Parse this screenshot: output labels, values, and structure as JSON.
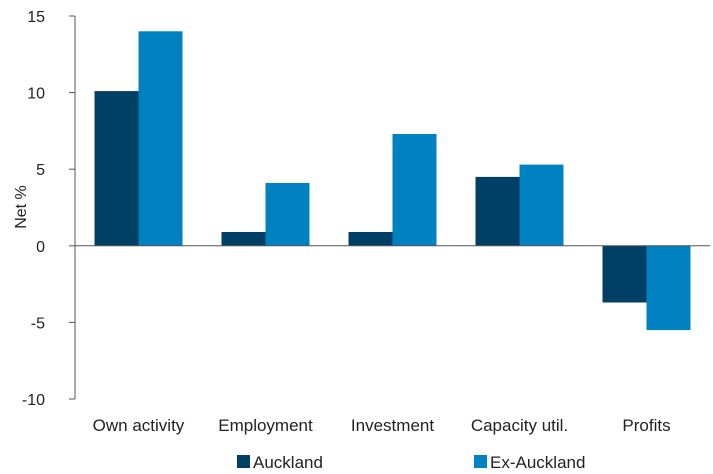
{
  "chart_data": {
    "type": "bar",
    "title": "",
    "xlabel": "",
    "ylabel": "Net %",
    "ylim": [
      -10,
      15
    ],
    "yticks": [
      15,
      10,
      5,
      0,
      -5,
      -10
    ],
    "categories": [
      "Own activity",
      "Employment",
      "Investment",
      "Capacity util.",
      "Profits"
    ],
    "series": [
      {
        "name": "Auckland",
        "color": "#003f66",
        "values": [
          10.1,
          0.9,
          0.9,
          4.5,
          -3.7
        ]
      },
      {
        "name": "Ex-Auckland",
        "color": "#0081c2",
        "values": [
          14.0,
          4.1,
          7.3,
          5.3,
          -5.5
        ]
      }
    ],
    "grid": false,
    "legend": "bottom"
  }
}
